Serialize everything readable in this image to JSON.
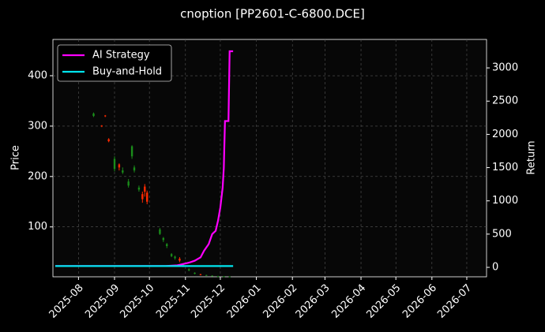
{
  "chart_data": {
    "type": "candlestick",
    "title": "cnoption [PP2601-C-6800.DCE]",
    "ylabel": "Price",
    "y2label": "Return",
    "up_color": "#ff2a00",
    "down_color": "#1a8c1a",
    "grid": true,
    "legend": "upper left",
    "xlim": [
      -22,
      351
    ],
    "xticks": [
      {
        "value": 0,
        "label": "2025-08"
      },
      {
        "value": 31,
        "label": "2025-09"
      },
      {
        "value": 61,
        "label": "2025-10"
      },
      {
        "value": 92,
        "label": "2025-11"
      },
      {
        "value": 122,
        "label": "2025-12"
      },
      {
        "value": 153,
        "label": "2026-01"
      },
      {
        "value": 184,
        "label": "2026-02"
      },
      {
        "value": 212,
        "label": "2026-03"
      },
      {
        "value": 243,
        "label": "2026-04"
      },
      {
        "value": 273,
        "label": "2026-05"
      },
      {
        "value": 304,
        "label": "2026-06"
      },
      {
        "value": 334,
        "label": "2026-07"
      }
    ],
    "ylim": [
      1,
      472
    ],
    "yticks": [
      100,
      200,
      300,
      400
    ],
    "y2lim": [
      -142,
      3428
    ],
    "y2ticks": [
      0,
      500,
      1000,
      1500,
      2000,
      2500,
      3000
    ],
    "x": [
      13,
      20,
      23,
      26,
      31,
      35,
      38,
      43,
      46,
      48,
      52,
      55,
      57,
      59,
      70,
      73,
      76,
      80,
      83,
      87,
      90,
      95,
      100,
      105,
      110,
      115,
      120,
      125,
      130
    ],
    "open": [
      325,
      300,
      320,
      270,
      235,
      218,
      212,
      190,
      260,
      218,
      178,
      155,
      170,
      150,
      95,
      78,
      66,
      46,
      41,
      33,
      26,
      16,
      9,
      5,
      4.5,
      3.2,
      2.2,
      2,
      1.6
    ],
    "high": [
      327,
      302,
      322,
      276,
      240,
      226,
      218,
      195,
      262,
      222,
      182,
      170,
      185,
      172,
      98,
      80,
      68,
      48,
      43,
      40,
      28,
      18,
      10,
      7,
      5,
      4,
      3,
      2.5,
      2
    ],
    "low": [
      318,
      298,
      318,
      268,
      210,
      212,
      205,
      178,
      235,
      208,
      170,
      148,
      160,
      145,
      84,
      70,
      58,
      40,
      35,
      30,
      20,
      12,
      6,
      4,
      3,
      2.5,
      1.8,
      1.6,
      1.2
    ],
    "close": [
      320,
      301,
      321,
      274,
      215,
      224,
      208,
      182,
      240,
      212,
      174,
      165,
      180,
      168,
      86,
      74,
      62,
      42,
      38,
      37,
      23,
      14,
      7,
      6,
      3.5,
      3,
      2,
      1.8,
      1.5
    ],
    "series": [
      {
        "name": "AI Strategy",
        "color": "#ff00ff",
        "axis": "y2",
        "x": [
          -20,
          75,
          85,
          90,
          95,
          100,
          105,
          108,
          112,
          115,
          118,
          120,
          122,
          124,
          125,
          126,
          129,
          130,
          133
        ],
        "values": [
          20,
          20,
          30,
          50,
          70,
          100,
          150,
          250,
          350,
          500,
          550,
          700,
          900,
          1200,
          1500,
          2200,
          2200,
          3250,
          3250
        ]
      },
      {
        "name": "Buy-and-Hold",
        "color": "#00e5ee",
        "axis": "y2",
        "x": [
          -20,
          133
        ],
        "values": [
          20,
          20
        ]
      }
    ]
  }
}
